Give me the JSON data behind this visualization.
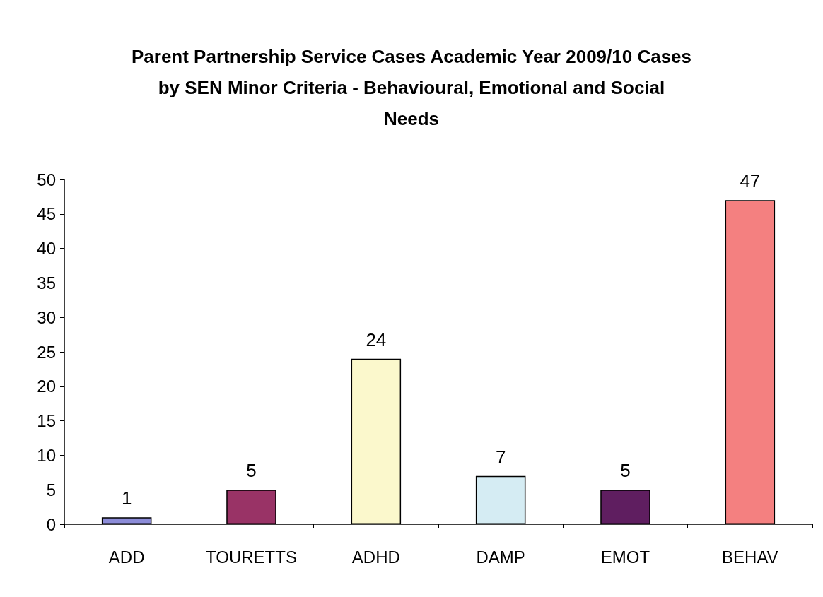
{
  "chart_data": {
    "type": "bar",
    "title": "Parent Partnership Service Cases Academic Year 2009/10 Cases by SEN Minor Criteria - Behavioural, Emotional and Social Needs",
    "categories": [
      "ADD",
      "TOURETTS",
      "ADHD",
      "DAMP",
      "EMOT",
      "BEHAV"
    ],
    "values": [
      1,
      5,
      24,
      7,
      5,
      47
    ],
    "colors": [
      "#8c8cd8",
      "#993366",
      "#fbf8cc",
      "#d5ecf3",
      "#5f1e60",
      "#f48080"
    ],
    "ylim": [
      0,
      50
    ],
    "yticks": [
      0,
      5,
      10,
      15,
      20,
      25,
      30,
      35,
      40,
      45,
      50
    ],
    "data_labels": true
  }
}
